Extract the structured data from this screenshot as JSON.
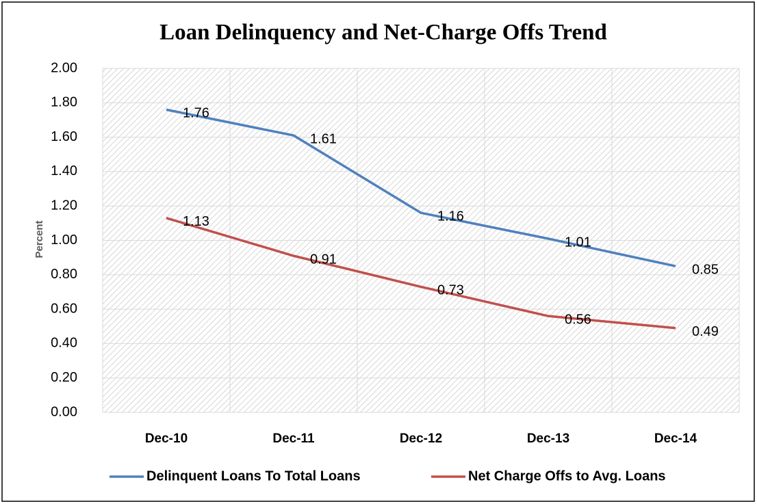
{
  "chart_data": {
    "type": "line",
    "title": "Loan Delinquency and Net-Charge Offs Trend",
    "y_label": "Percent",
    "categories": [
      "Dec-10",
      "Dec-11",
      "Dec-12",
      "Dec-13",
      "Dec-14"
    ],
    "series": [
      {
        "name": "Delinquent Loans To Total Loans",
        "color": "#4f81bd",
        "values": [
          1.76,
          1.61,
          1.16,
          1.01,
          0.85
        ]
      },
      {
        "name": "Net Charge Offs to Avg. Loans",
        "color": "#c0504d",
        "values": [
          1.13,
          0.91,
          0.73,
          0.56,
          0.49
        ]
      }
    ],
    "ylim": [
      0,
      2
    ],
    "yticks": [
      {
        "value": 0,
        "label": "0.00"
      },
      {
        "value": 0.2,
        "label": "0.20"
      },
      {
        "value": 0.4,
        "label": "0.40"
      },
      {
        "value": 0.6,
        "label": "0.60"
      },
      {
        "value": 0.8,
        "label": "0.80"
      },
      {
        "value": 1,
        "label": "1.00"
      },
      {
        "value": 1.2,
        "label": "1.20"
      },
      {
        "value": 1.4,
        "label": "1.40"
      },
      {
        "value": 1.6,
        "label": "1.60"
      },
      {
        "value": 1.8,
        "label": "1.80"
      },
      {
        "value": 2,
        "label": "2.00"
      }
    ],
    "grid": true,
    "legend": "bottom"
  }
}
